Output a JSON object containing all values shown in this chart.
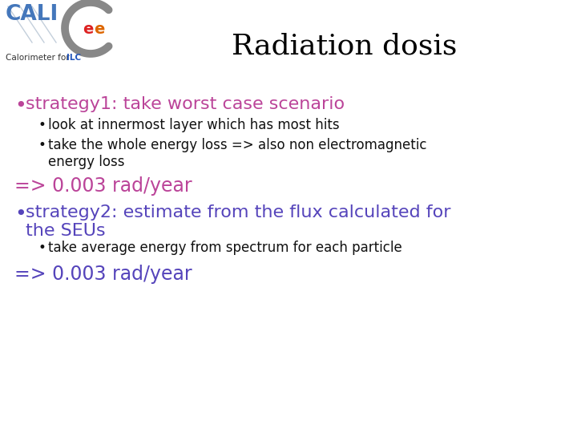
{
  "title": "Radiation dosis",
  "title_fontsize": 26,
  "title_color": "#000000",
  "bg_color": "#ffffff",
  "bullet1_text": "strategy1: take worst case scenario",
  "bullet1_color": "#bb4499",
  "bullet1_fontsize": 16,
  "sub_bullet1a": "look at innermost layer which has most hits",
  "sub_bullet1b": "take the whole energy loss => also non electromagnetic\nenergy loss",
  "sub_bullet_color": "#111111",
  "sub_bullet_fontsize": 12,
  "result1_text": "=> 0.003 rad/year",
  "result1_color": "#bb4499",
  "result1_fontsize": 17,
  "bullet2_text": "strategy2: estimate from the flux calculated for\nthe SEUs",
  "bullet2_color": "#5544bb",
  "bullet2_fontsize": 16,
  "sub_bullet2a": "take average energy from spectrum for each particle",
  "result2_text": "=> 0.003 rad/year",
  "result2_color": "#5544bb",
  "result2_fontsize": 17
}
